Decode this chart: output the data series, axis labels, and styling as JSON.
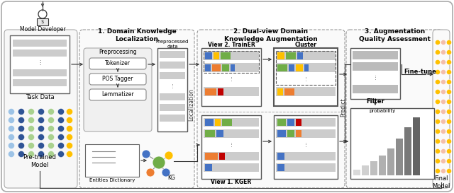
{
  "bg_color": "#ffffff",
  "section1_title": "1. Domain Knowledge\nLocalization",
  "section2_title": "2. Dual-view Domain\nKnowledge Augmentation",
  "section3_title": "3. Augmentation\nQuality Assessment",
  "model_developer_label": "Model Developer",
  "task_data_label": "Task Data",
  "pretrained_label": "Pre-trained\nModel",
  "preprocessing_label": "Preprocessing",
  "tokenizer_label": "Tokenizer",
  "pos_tagger_label": "POS Tagger",
  "lemmatizer_label": "Lemmatizer",
  "preprocessed_data_label": "Preprocessed\ndata",
  "entities_dict_label": "Entities Dictionary",
  "kg_label": "KG",
  "localization_label": "Localization",
  "view2_label": "View 2. TrainER",
  "cluster_label": "Cluster",
  "view1_label": "View 1. KGER",
  "predict_label": "Predict",
  "filter_label": "Filter",
  "probability_label": "probability",
  "finetune_label": "Fine-tune",
  "final_model_label": "Final\nModel",
  "colors": {
    "blue": "#4472C4",
    "orange": "#ED7D31",
    "green": "#70AD47",
    "red": "#C00000",
    "yellow": "#FFC000",
    "gray_light": "#D9D9D9",
    "gray_mid": "#BFBFBF",
    "gray_dark": "#7F7F7F",
    "bar1": "#D9D9D9",
    "bar2": "#BFBFBF",
    "bar3": "#A5A5A5",
    "bar4": "#8C8C8C",
    "bar5": "#737373",
    "neural_yellow": "#FFC000",
    "neural_peach": "#F4BEAA",
    "neural_dark": "#2F5496",
    "neural_mid": "#4472C4",
    "neural_green": "#A9D18E",
    "neural_blue_light": "#9DC3E6"
  }
}
